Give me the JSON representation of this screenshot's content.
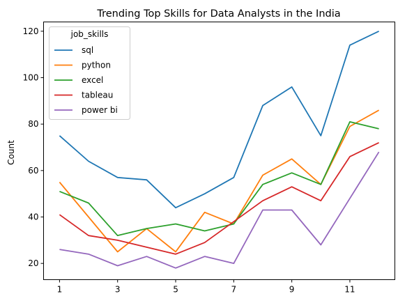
{
  "chart_data": {
    "type": "line",
    "title": "Trending Top Skills for Data Analysts in the India",
    "xlabel": "",
    "ylabel": "Count",
    "x": [
      1,
      2,
      3,
      4,
      5,
      6,
      7,
      8,
      9,
      10,
      11,
      12
    ],
    "xticks": [
      1,
      3,
      5,
      7,
      9,
      11
    ],
    "yticks": [
      20,
      40,
      60,
      80,
      100,
      120
    ],
    "xlim": [
      0.45,
      12.55
    ],
    "ylim": [
      13,
      124
    ],
    "grid": false,
    "legend": {
      "title": "job_skills",
      "placement": "upper-left"
    },
    "series": [
      {
        "name": "sql",
        "color": "#1f77b4",
        "values": [
          75,
          64,
          57,
          56,
          44,
          50,
          57,
          88,
          96,
          75,
          114,
          120
        ]
      },
      {
        "name": "python",
        "color": "#ff7f0e",
        "values": [
          55,
          40,
          25,
          35,
          25,
          42,
          37,
          58,
          65,
          54,
          79,
          86
        ]
      },
      {
        "name": "excel",
        "color": "#2ca02c",
        "values": [
          51,
          46,
          32,
          35,
          37,
          34,
          37,
          54,
          59,
          54,
          81,
          78
        ]
      },
      {
        "name": "tableau",
        "color": "#d62728",
        "values": [
          41,
          32,
          30,
          27,
          24,
          29,
          38,
          47,
          53,
          47,
          66,
          72
        ]
      },
      {
        "name": "power bi",
        "color": "#9467bd",
        "values": [
          26,
          24,
          19,
          23,
          18,
          23,
          20,
          43,
          43,
          28,
          48,
          68
        ]
      }
    ]
  }
}
